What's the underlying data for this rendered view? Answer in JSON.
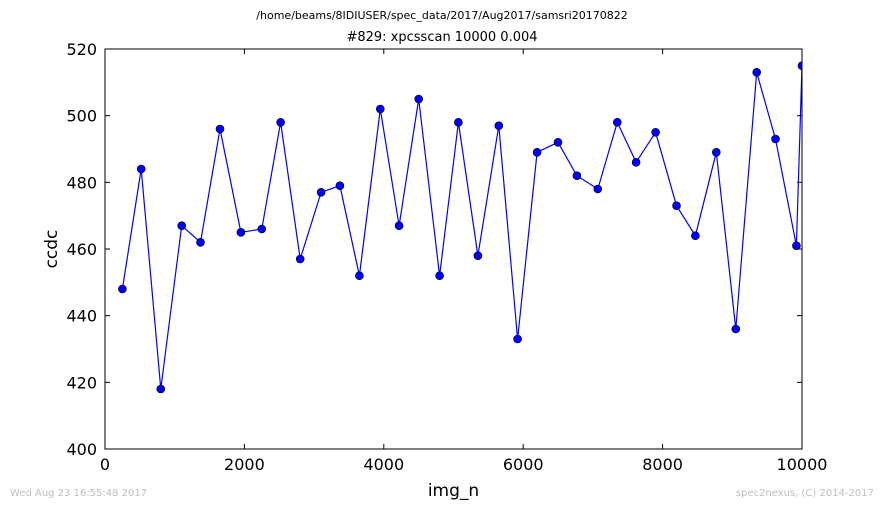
{
  "header": {
    "path": "/home/beams/8IDIUSER/spec_data/2017/Aug2017/samsri20170822",
    "scan_title": "#829: xpcsscan 10000 0.004"
  },
  "footer": {
    "timestamp": "Wed Aug 23 16:55:48 2017",
    "credit": "spec2nexus, (C) 2014-2017"
  },
  "chart_data": {
    "type": "line",
    "title": "#829: xpcsscan 10000 0.004",
    "xlabel": "img_n",
    "ylabel": "ccdc",
    "xlim": [
      0,
      10000
    ],
    "ylim": [
      400,
      520
    ],
    "xticks": [
      0,
      2000,
      4000,
      6000,
      8000,
      10000
    ],
    "yticks": [
      400,
      420,
      440,
      460,
      480,
      500,
      520
    ],
    "grid": false,
    "legend": "none",
    "series": [
      {
        "color": "#0000ff",
        "marker": "circle",
        "x": [
          250,
          520,
          800,
          1100,
          1370,
          1650,
          1950,
          2250,
          2520,
          2800,
          3100,
          3370,
          3650,
          3950,
          4220,
          4500,
          4800,
          5070,
          5350,
          5650,
          5920,
          6200,
          6500,
          6770,
          7070,
          7350,
          7620,
          7900,
          8200,
          8470,
          8770,
          9050,
          9350,
          9620,
          9920,
          10000
        ],
        "y": [
          448,
          484,
          418,
          467,
          462,
          496,
          465,
          466,
          498,
          457,
          477,
          479,
          452,
          502,
          467,
          505,
          452,
          498,
          458,
          497,
          433,
          489,
          492,
          482,
          478,
          498,
          486,
          495,
          473,
          464,
          489,
          436,
          513,
          493,
          461,
          515
        ]
      }
    ]
  }
}
